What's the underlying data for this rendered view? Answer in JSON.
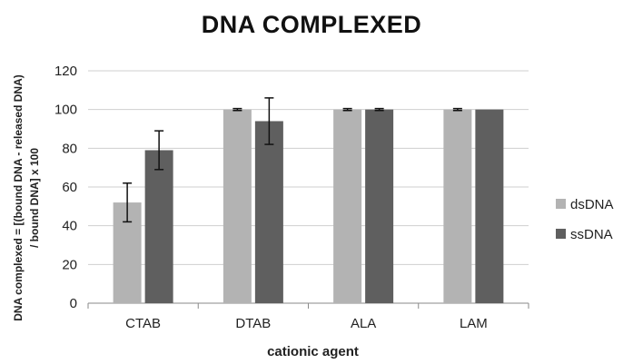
{
  "chart_data": {
    "type": "bar",
    "title": "DNA COMPLEXED",
    "xlabel": "cationic agent",
    "ylabel": "DNA complexed = [(bound DNA - released DNA) / bound DNA] x 100",
    "ylabel_lines": [
      "DNA complexed = [(bound DNA - released DNA)",
      "/ bound DNA] x 100"
    ],
    "categories": [
      "CTAB",
      "DTAB",
      "ALA",
      "LAM"
    ],
    "ylim": [
      0,
      120
    ],
    "yticks": [
      0,
      20,
      40,
      60,
      80,
      100,
      120
    ],
    "grid": true,
    "legend_position": "right",
    "series": [
      {
        "name": "dsDNA",
        "color": "#b3b3b3",
        "values": [
          52,
          100,
          100,
          100
        ],
        "errors": [
          10,
          0.5,
          0.5,
          0.5
        ]
      },
      {
        "name": "ssDNA",
        "color": "#5f5f5f",
        "values": [
          79,
          94,
          100,
          100
        ],
        "errors": [
          10,
          12,
          0.5,
          null
        ]
      }
    ]
  }
}
